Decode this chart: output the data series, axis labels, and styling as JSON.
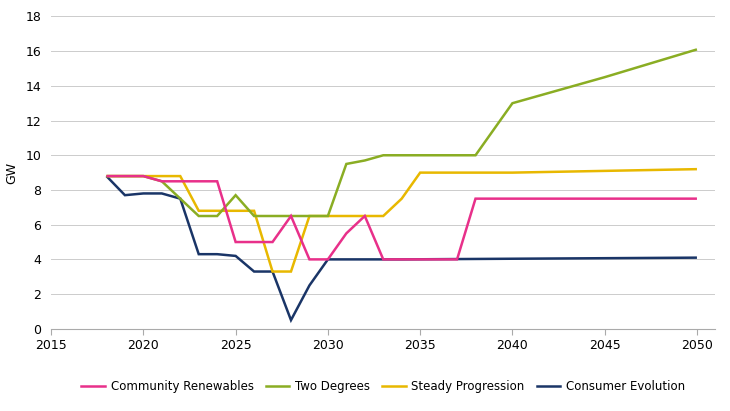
{
  "community_renewables": {
    "x": [
      2018,
      2019,
      2020,
      2021,
      2022,
      2023,
      2024,
      2025,
      2026,
      2027,
      2028,
      2029,
      2030,
      2031,
      2032,
      2033,
      2034,
      2035,
      2036,
      2037,
      2038,
      2039,
      2050
    ],
    "y": [
      8.8,
      8.8,
      8.8,
      8.5,
      8.5,
      8.5,
      8.5,
      5.0,
      5.0,
      5.0,
      6.5,
      4.0,
      4.0,
      5.5,
      6.5,
      4.0,
      4.0,
      4.0,
      4.0,
      4.0,
      7.5,
      7.5,
      7.5
    ],
    "color": "#e8308a",
    "label": "Community Renewables",
    "linewidth": 1.8
  },
  "two_degrees": {
    "x": [
      2018,
      2019,
      2020,
      2021,
      2022,
      2023,
      2024,
      2025,
      2026,
      2027,
      2028,
      2029,
      2030,
      2031,
      2032,
      2033,
      2034,
      2035,
      2036,
      2037,
      2038,
      2040,
      2045,
      2050
    ],
    "y": [
      8.8,
      8.8,
      8.8,
      8.5,
      7.5,
      6.5,
      6.5,
      7.7,
      6.5,
      6.5,
      6.5,
      6.5,
      6.5,
      9.5,
      9.7,
      10.0,
      10.0,
      10.0,
      10.0,
      10.0,
      10.0,
      13.0,
      14.5,
      16.1
    ],
    "color": "#8aad23",
    "label": "Two Degrees",
    "linewidth": 1.8
  },
  "steady_progression": {
    "x": [
      2018,
      2019,
      2020,
      2021,
      2022,
      2023,
      2024,
      2025,
      2026,
      2027,
      2028,
      2029,
      2030,
      2031,
      2032,
      2033,
      2034,
      2035,
      2036,
      2037,
      2038,
      2039,
      2040,
      2050
    ],
    "y": [
      8.8,
      8.8,
      8.8,
      8.8,
      8.8,
      6.8,
      6.8,
      6.8,
      6.8,
      3.3,
      3.3,
      6.5,
      6.5,
      6.5,
      6.5,
      6.5,
      7.5,
      9.0,
      9.0,
      9.0,
      9.0,
      9.0,
      9.0,
      9.2
    ],
    "color": "#e8b800",
    "label": "Steady Progression",
    "linewidth": 1.8
  },
  "consumer_evolution": {
    "x": [
      2018,
      2019,
      2020,
      2021,
      2022,
      2023,
      2024,
      2025,
      2026,
      2027,
      2028,
      2029,
      2030,
      2031,
      2032,
      2033,
      2034,
      2050
    ],
    "y": [
      8.8,
      7.7,
      7.8,
      7.8,
      7.5,
      4.3,
      4.3,
      4.2,
      3.3,
      3.3,
      0.5,
      2.5,
      4.0,
      4.0,
      4.0,
      4.0,
      4.0,
      4.1
    ],
    "color": "#1a3567",
    "label": "Consumer Evolution",
    "linewidth": 1.8
  },
  "xlim": [
    2015,
    2051
  ],
  "ylim": [
    0,
    18
  ],
  "yticks": [
    0,
    2,
    4,
    6,
    8,
    10,
    12,
    14,
    16,
    18
  ],
  "xticks": [
    2015,
    2020,
    2025,
    2030,
    2035,
    2040,
    2045,
    2050
  ],
  "ylabel": "GW",
  "background_color": "#ffffff",
  "grid_color": "#cccccc"
}
